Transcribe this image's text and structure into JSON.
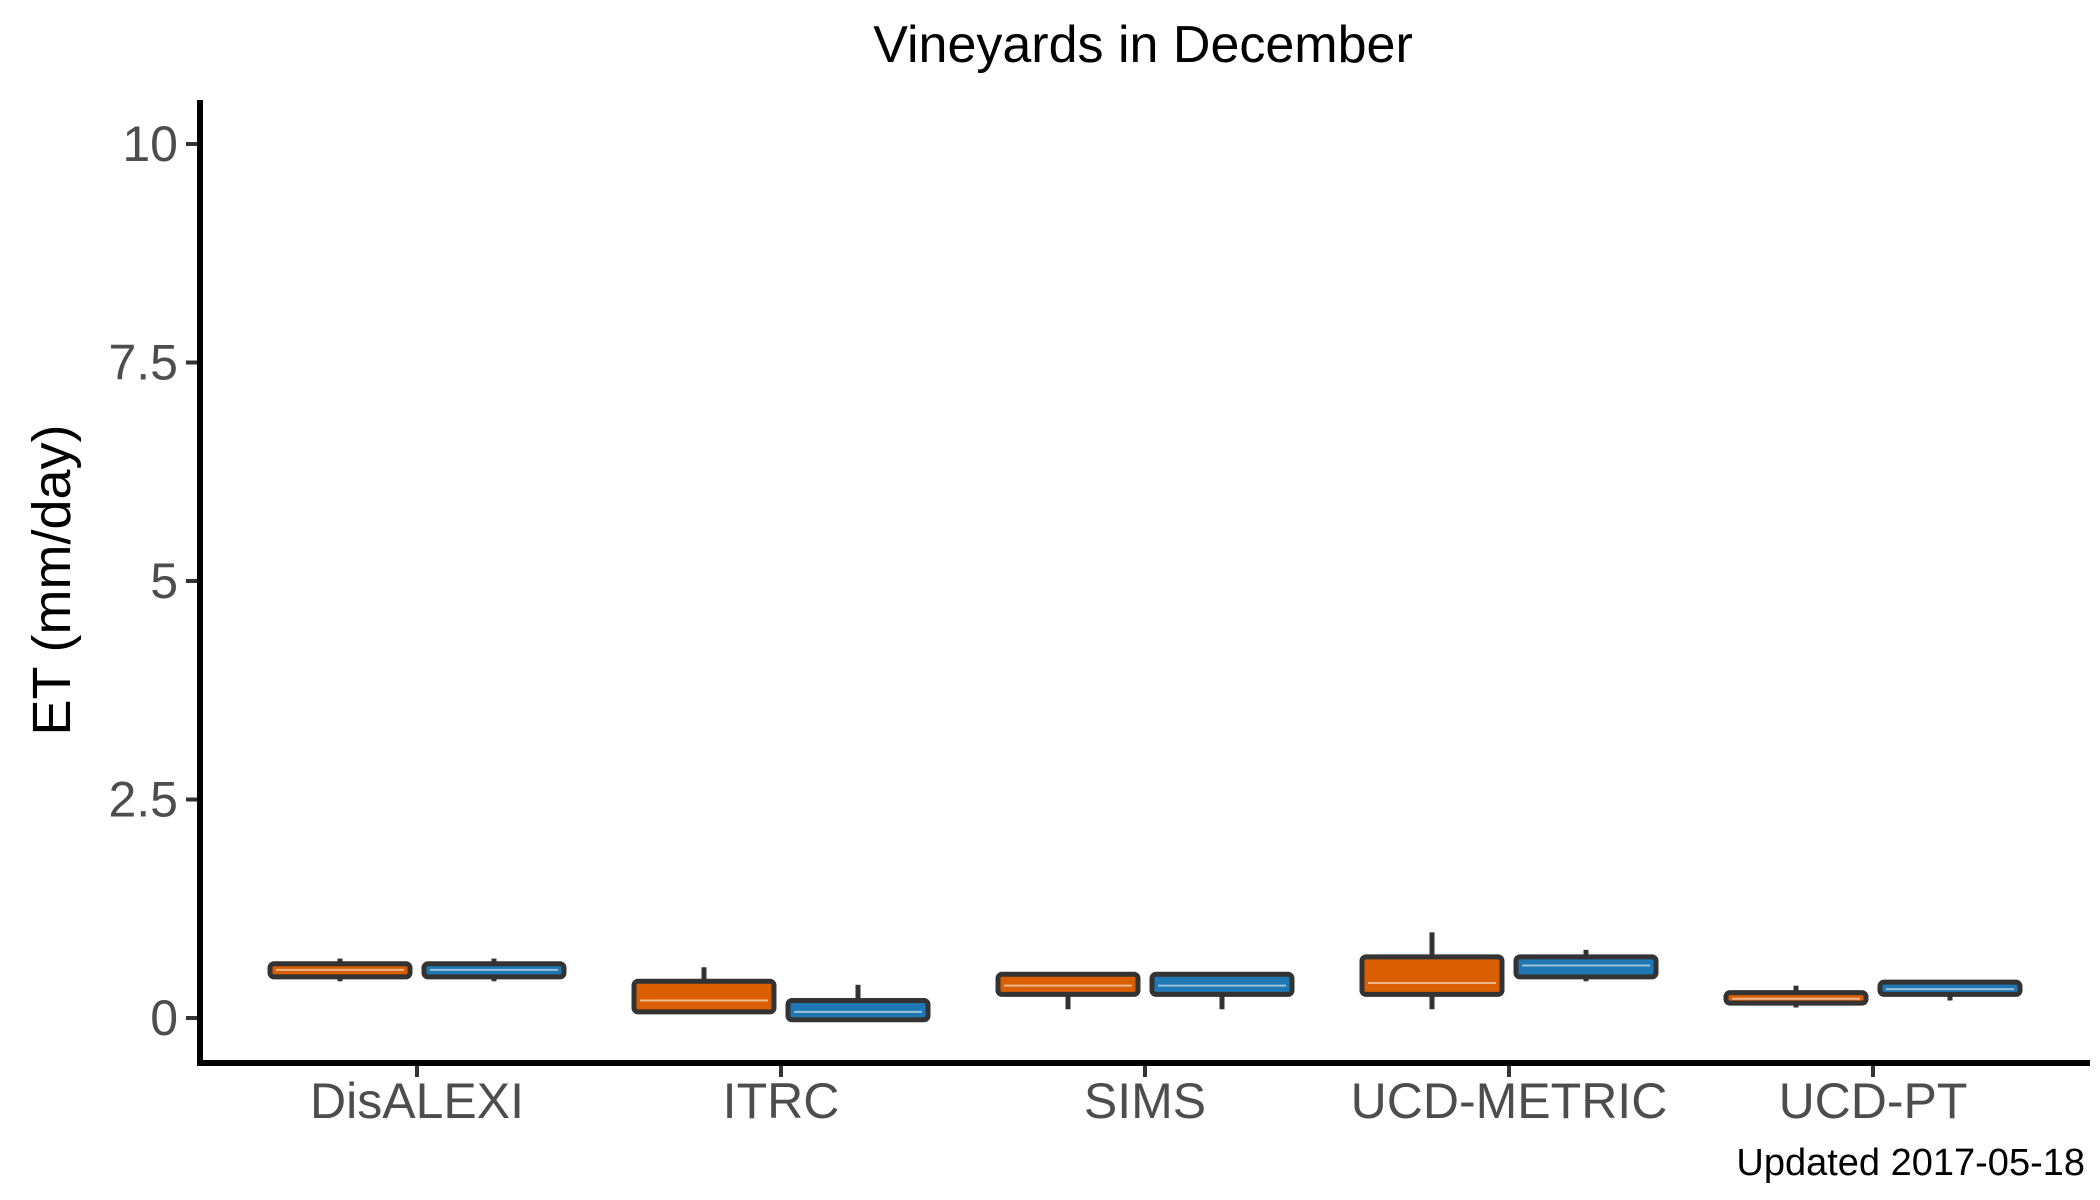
{
  "chart_data": {
    "type": "boxplot",
    "title": "Vineyards in December",
    "xlabel": "",
    "ylabel": "ET (mm/day)",
    "ylim": [
      -0.5,
      10.5
    ],
    "yticks": [
      0,
      2.5,
      5,
      7.5,
      10
    ],
    "ytick_labels": [
      "0",
      "2.5",
      "5",
      "7.5",
      "10"
    ],
    "grid": false,
    "legend": "none",
    "categories": [
      "DisALEXI",
      "ITRC",
      "SIMS",
      "UCD-METRIC",
      "UCD-PT"
    ],
    "series": [
      {
        "color": "#d95f02",
        "median_color": "#d95f02",
        "boxes": [
          {
            "min": 0.42,
            "q1": 0.47,
            "median": 0.55,
            "q3": 0.62,
            "max": 0.68
          },
          {
            "min": 0.07,
            "q1": 0.07,
            "median": 0.2,
            "q3": 0.42,
            "max": 0.58
          },
          {
            "min": 0.1,
            "q1": 0.27,
            "median": 0.37,
            "q3": 0.5,
            "max": 0.5
          },
          {
            "min": 0.1,
            "q1": 0.27,
            "median": 0.4,
            "q3": 0.7,
            "max": 0.98
          },
          {
            "min": 0.12,
            "q1": 0.17,
            "median": 0.22,
            "q3": 0.29,
            "max": 0.37
          }
        ]
      },
      {
        "color": "#1f78b4",
        "median_color": "#1f78b4",
        "boxes": [
          {
            "min": 0.42,
            "q1": 0.47,
            "median": 0.55,
            "q3": 0.62,
            "max": 0.68
          },
          {
            "min": -0.02,
            "q1": -0.02,
            "median": 0.07,
            "q3": 0.2,
            "max": 0.38
          },
          {
            "min": 0.1,
            "q1": 0.27,
            "median": 0.37,
            "q3": 0.5,
            "max": 0.5
          },
          {
            "min": 0.42,
            "q1": 0.47,
            "median": 0.6,
            "q3": 0.7,
            "max": 0.78
          },
          {
            "min": 0.2,
            "q1": 0.27,
            "median": 0.33,
            "q3": 0.41,
            "max": 0.41
          }
        ]
      }
    ],
    "caption": "Updated  2017-05-18"
  }
}
